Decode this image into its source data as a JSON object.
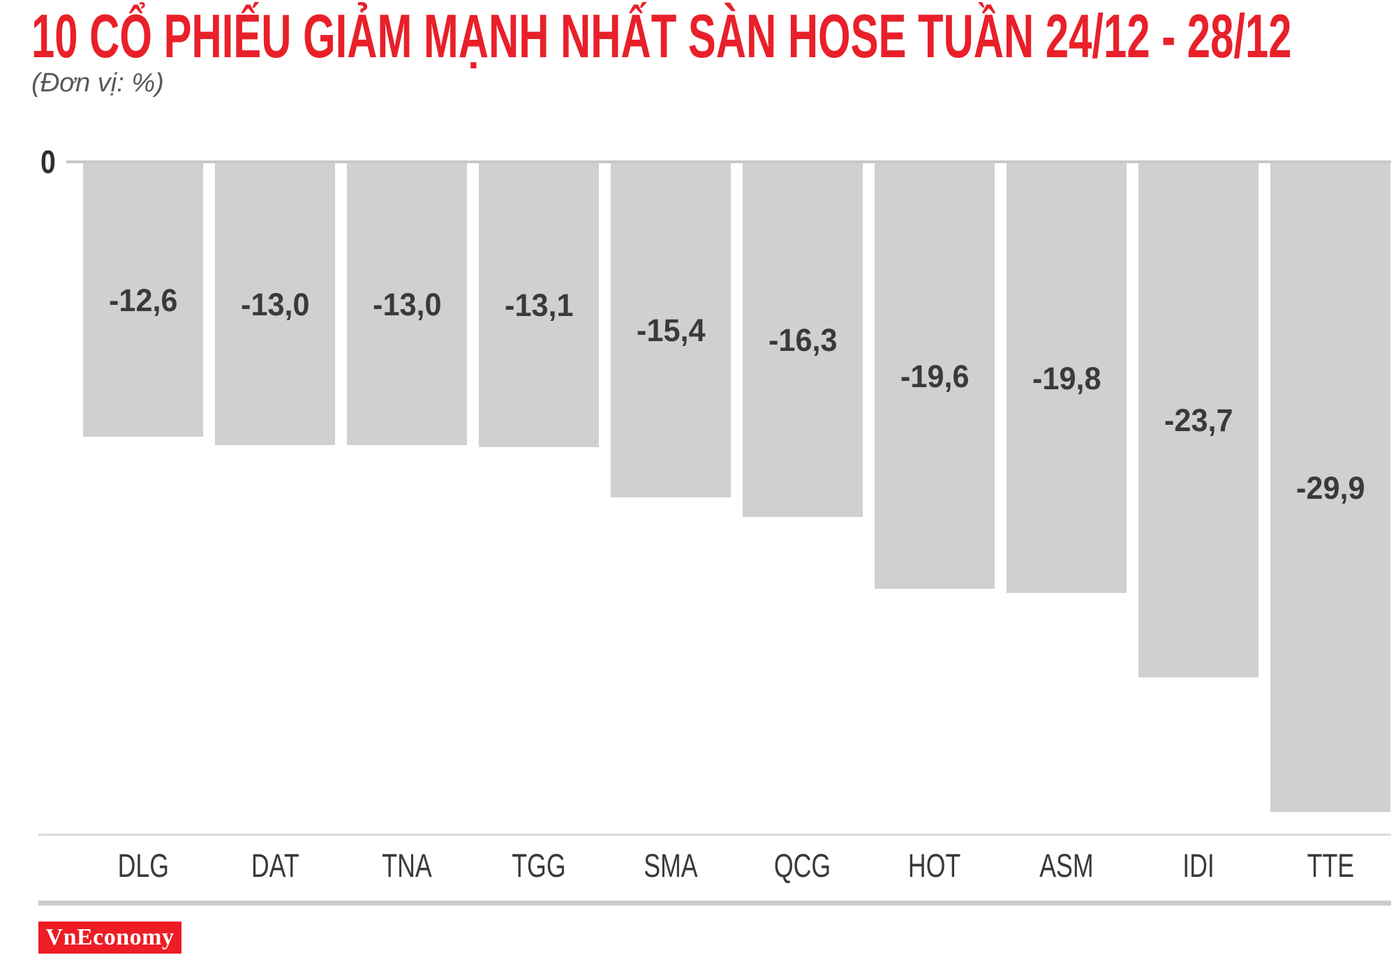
{
  "header": {
    "title": "10 CỔ PHIẾU GIẢM MẠNH NHẤT SÀN HOSE TUẦN 24/12 - 28/12",
    "subtitle": "(Đơn vị: %)"
  },
  "chart_data": {
    "type": "bar",
    "orientation": "vertical",
    "direction": "negative-down-from-zero",
    "unit": "%",
    "categories": [
      "DLG",
      "DAT",
      "TNA",
      "TGG",
      "SMA",
      "QCG",
      "HOT",
      "ASM",
      "IDI",
      "TTE"
    ],
    "values": [
      -12.6,
      -13.0,
      -13.0,
      -13.1,
      -15.4,
      -16.3,
      -19.6,
      -19.8,
      -23.7,
      -29.9
    ],
    "value_labels": [
      "-12,6",
      "-13,0",
      "-13,0",
      "-13,1",
      "-15,4",
      "-16,3",
      "-19,6",
      "-19,8",
      "-23,7",
      "-29,9"
    ],
    "zero_tick_label": "0",
    "ylim": [
      -30,
      0
    ],
    "grid": false,
    "legend": "none",
    "value_label_position": "inside-center"
  },
  "colors": {
    "title_red": "#e8202a",
    "logo_red": "#ee1c25",
    "bar_gray": "#d1cfcf",
    "axis_gray": "#c9c7c7",
    "text_dark": "#3a3a3a",
    "subtitle_gray": "#58595b"
  },
  "footer": {
    "logo_text": "VnEconomy"
  }
}
